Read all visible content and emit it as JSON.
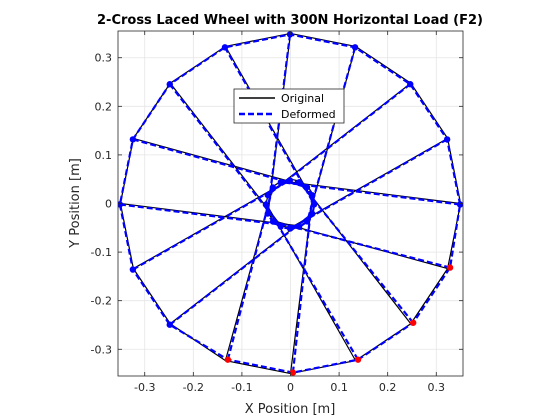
{
  "chart_data": {
    "type": "line",
    "title": "2-Cross Laced Wheel with 300N Horizontal Load (F2)",
    "xlabel": "X Position [m]",
    "ylabel": "Y Position [m]",
    "xlim": [
      -0.355,
      0.355
    ],
    "ylim": [
      -0.355,
      0.355
    ],
    "xticks": [
      -0.3,
      -0.2,
      -0.1,
      0,
      0.1,
      0.2,
      0.3
    ],
    "yticks": [
      -0.3,
      -0.2,
      -0.1,
      0,
      0.1,
      0.2,
      0.3
    ],
    "xtick_labels": [
      "-0.3",
      "-0.2",
      "-0.1",
      "0",
      "0.1",
      "0.2",
      "0.3"
    ],
    "ytick_labels": [
      "-0.3",
      "-0.2",
      "-0.1",
      "0",
      "0.1",
      "0.2",
      "0.3"
    ],
    "grid": true,
    "legend": {
      "placement": "top-center",
      "entries": [
        {
          "label": "Original",
          "style": "solid",
          "color": "#000000"
        },
        {
          "label": "Deformed",
          "style": "dashed",
          "color": "#0000ff"
        }
      ]
    },
    "wheel": {
      "rim_radius": 0.35,
      "hub_radius": 0.05,
      "rim_node_count": 16,
      "lacing_cross": 2,
      "deformed_translation": [
        -0.001,
        -0.002
      ],
      "loaded_rim_node_angles_deg": [
        247.5,
        270,
        292.5,
        315,
        337.5
      ],
      "loaded_rim_node_shift": [
        0.006,
        0.004
      ]
    },
    "colors": {
      "original": "#000000",
      "deformed": "#0000ff",
      "node": "#0000ff",
      "loaded_node": "#ff0000",
      "grid": "#e5e5e5",
      "axes": "#262626"
    }
  }
}
